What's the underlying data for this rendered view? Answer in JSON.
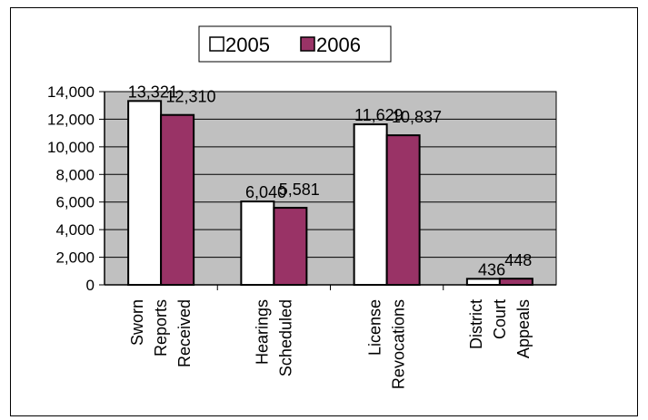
{
  "chart_data": {
    "type": "bar",
    "categories": [
      [
        "Sworn",
        "Reports",
        "Received"
      ],
      [
        "Hearings",
        "Scheduled"
      ],
      [
        "License",
        "Revocations"
      ],
      [
        "District",
        "Court",
        "Appeals"
      ]
    ],
    "series": [
      {
        "name": "2005",
        "values": [
          13321,
          6040,
          11629,
          436
        ],
        "labels": [
          "13,321",
          "6,040",
          "11,629",
          "436"
        ]
      },
      {
        "name": "2006",
        "values": [
          12310,
          5581,
          10837,
          448
        ],
        "labels": [
          "12,310",
          "5,581",
          "10,837",
          "448"
        ]
      }
    ],
    "ylim": [
      0,
      14000
    ],
    "y_ticks": [
      0,
      2000,
      4000,
      6000,
      8000,
      10000,
      12000,
      14000
    ],
    "y_tick_labels": [
      "0",
      "2,000",
      "4,000",
      "6,000",
      "8,000",
      "10,000",
      "12,000",
      "14,000"
    ],
    "grid": true,
    "legend_position": "top-center",
    "colors": {
      "series": [
        "#ffffff",
        "#993366"
      ],
      "plot_background": "#c0c0c0",
      "frame": "#000000"
    }
  }
}
